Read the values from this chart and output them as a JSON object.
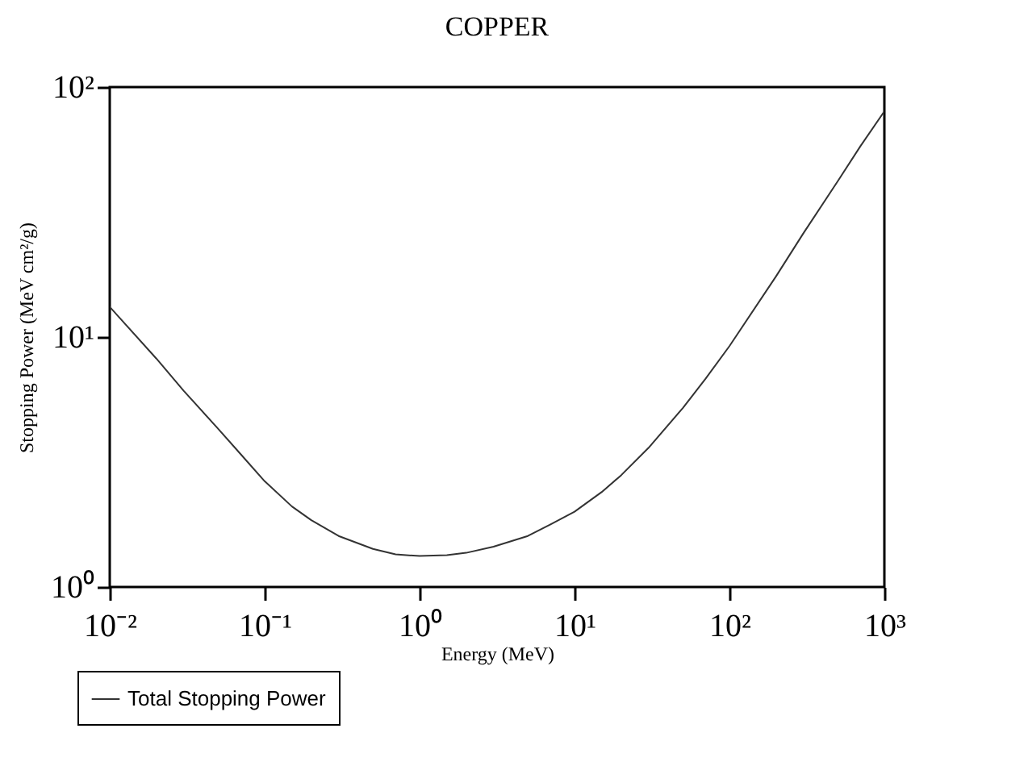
{
  "chart_data": {
    "type": "line",
    "title": "COPPER",
    "xlabel": "Energy (MeV)",
    "ylabel": "Stopping Power (MeV cm²/g)",
    "x": [
      0.01,
      0.02,
      0.03,
      0.05,
      0.07,
      0.1,
      0.15,
      0.2,
      0.3,
      0.5,
      0.7,
      1,
      1.5,
      2,
      3,
      5,
      7,
      10,
      15,
      20,
      30,
      50,
      70,
      100,
      200,
      300,
      500,
      700,
      1000
    ],
    "series": [
      {
        "name": "Total Stopping Power",
        "color": "#333333",
        "values": [
          13.2,
          8.2,
          6.1,
          4.3,
          3.4,
          2.65,
          2.1,
          1.85,
          1.6,
          1.42,
          1.35,
          1.33,
          1.34,
          1.37,
          1.45,
          1.6,
          1.78,
          2.0,
          2.4,
          2.8,
          3.6,
          5.2,
          6.8,
          9.2,
          17.5,
          26,
          42,
          58,
          80
        ]
      }
    ],
    "log": "xy",
    "xlim": [
      0.01,
      1000
    ],
    "ylim": [
      1,
      100
    ],
    "xticks": [
      {
        "value": 0.01,
        "label": "10⁻²"
      },
      {
        "value": 0.1,
        "label": "10⁻¹"
      },
      {
        "value": 1,
        "label": "10⁰"
      },
      {
        "value": 10,
        "label": "10¹"
      },
      {
        "value": 100,
        "label": "10²"
      },
      {
        "value": 1000,
        "label": "10³"
      }
    ],
    "yticks": [
      {
        "value": 1,
        "label": "10⁰"
      },
      {
        "value": 10,
        "label": "10¹"
      },
      {
        "value": 100,
        "label": "10²"
      }
    ],
    "grid": false,
    "legend": "bottom left",
    "marker": "none",
    "line_style": "solid"
  }
}
